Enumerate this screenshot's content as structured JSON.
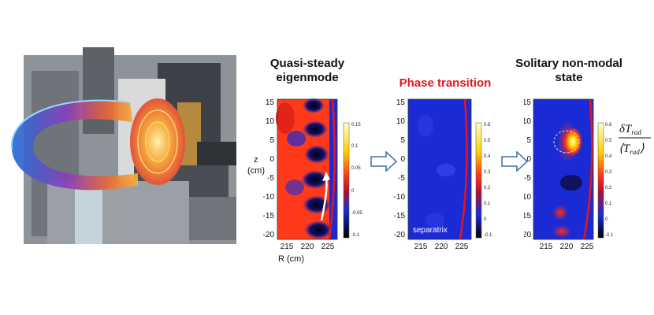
{
  "panels": [
    {
      "id": "quasi",
      "title_lines": [
        "Quasi-steady",
        "eigenmode"
      ],
      "title_color": "#111111",
      "colorbar_ticks": [
        "0.15",
        "0.1",
        "0.05",
        "0",
        "-0.05",
        "-0.1"
      ]
    },
    {
      "id": "phase",
      "title_lines": [
        "Phase transition"
      ],
      "title_color": "#e8141c",
      "colorbar_ticks": [
        "0.6",
        "0.5",
        "0.4",
        "0.3",
        "0.2",
        "0.1",
        "0",
        "-0.1"
      ],
      "annotation": "separatrix"
    },
    {
      "id": "solitary",
      "title_lines": [
        "Solitary non-modal",
        "state"
      ],
      "title_color": "#111111",
      "colorbar_ticks": [
        "0.6",
        "0.5",
        "0.4",
        "0.3",
        "0.2",
        "0.1",
        "0",
        "-0.1"
      ]
    }
  ],
  "y_ticks": [
    "15",
    "10",
    "5",
    "0",
    "-5",
    "-10",
    "-15",
    "-20"
  ],
  "x_ticks": [
    "215",
    "220",
    "225"
  ],
  "y_axis_label": [
    "z",
    "(cm)"
  ],
  "x_axis_label": "R (cm)",
  "equation": {
    "numerator": "δT",
    "numerator_sub": "rad",
    "denominator": "⟨T",
    "denominator_sub": "rad",
    "denominator_close": "⟩"
  },
  "colors": {
    "arrow_outline": "#3a6ea5",
    "separatrix": "#e8141c",
    "background_field": "#1a2bd6"
  }
}
